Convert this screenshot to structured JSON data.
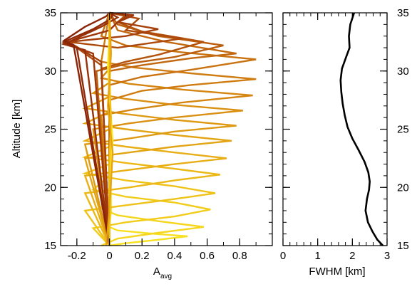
{
  "chart_data": [
    {
      "type": "line",
      "panel": "averaging-kernels",
      "xlabel": "A",
      "xlabel_sub": "avg",
      "ylabel": "Altitude [km]",
      "xlim": [
        -0.3,
        1.0
      ],
      "ylim": [
        15,
        35
      ],
      "xticks": [
        -0.2,
        0,
        0.2,
        0.4,
        0.6,
        0.8
      ],
      "xtick_labels": [
        "-0.2",
        "0",
        "0.2",
        "0.4",
        "0.6",
        "0.8"
      ],
      "yticks": [
        15,
        20,
        25,
        30,
        35
      ],
      "ytick_labels": [
        "15",
        "20",
        "25",
        "30",
        "35"
      ],
      "grid": false,
      "series": [
        {
          "color": "#f7e020",
          "x": [
            0,
            0.1,
            0.3,
            0.48,
            0.28,
            0.05,
            0,
            0.01,
            0
          ],
          "y": [
            15,
            15.2,
            15.5,
            15.8,
            16,
            16.3,
            16.6,
            18,
            35
          ]
        },
        {
          "color": "#f5d61c",
          "x": [
            -0.05,
            0.05,
            0.3,
            0.58,
            0.3,
            0.05,
            -0.05,
            0,
            0
          ],
          "y": [
            15,
            15.6,
            16.1,
            16.6,
            17.1,
            17.6,
            18.2,
            20,
            35
          ]
        },
        {
          "color": "#f2cc1a",
          "x": [
            0,
            -0.1,
            0.1,
            0.4,
            0.62,
            0.4,
            0.1,
            -0.1,
            0,
            0
          ],
          "y": [
            15,
            16.5,
            17,
            17.5,
            18.1,
            18.7,
            19.2,
            19.8,
            21,
            35
          ]
        },
        {
          "color": "#efc218",
          "x": [
            0,
            -0.15,
            0.12,
            0.4,
            0.65,
            0.4,
            0.1,
            -0.15,
            0,
            0
          ],
          "y": [
            15,
            18,
            18.5,
            19,
            19.5,
            20.1,
            20.6,
            21.2,
            22,
            35
          ]
        },
        {
          "color": "#ebb816",
          "x": [
            0,
            -0.15,
            0.12,
            0.4,
            0.68,
            0.4,
            0.1,
            -0.15,
            0,
            0
          ],
          "y": [
            15,
            19.5,
            20,
            20.6,
            21.1,
            21.6,
            22.1,
            22.6,
            23.5,
            35
          ]
        },
        {
          "color": "#e7ae15",
          "x": [
            0,
            -0.15,
            0.12,
            0.4,
            0.72,
            0.4,
            0.1,
            -0.15,
            0,
            0
          ],
          "y": [
            15,
            21,
            21.5,
            22,
            22.5,
            23,
            23.5,
            24,
            25,
            35
          ]
        },
        {
          "color": "#e3a414",
          "x": [
            0,
            -0.15,
            0.12,
            0.4,
            0.75,
            0.4,
            0.1,
            -0.15,
            0,
            0
          ],
          "y": [
            15,
            22.5,
            23,
            23.5,
            24,
            24.5,
            25,
            25.5,
            26.5,
            35
          ]
        },
        {
          "color": "#df9a13",
          "x": [
            0,
            -0.15,
            0.12,
            0.4,
            0.78,
            0.4,
            0.1,
            -0.15,
            0,
            0
          ],
          "y": [
            15,
            23.7,
            24.2,
            24.8,
            25.3,
            25.8,
            26.3,
            26.8,
            27.8,
            35
          ]
        },
        {
          "color": "#da9012",
          "x": [
            0,
            -0.1,
            0.12,
            0.4,
            0.82,
            0.4,
            0.1,
            -0.1,
            0,
            0
          ],
          "y": [
            15,
            25,
            25.5,
            26,
            26.6,
            27.1,
            27.6,
            28.1,
            29,
            35
          ]
        },
        {
          "color": "#d58611",
          "x": [
            0,
            -0.05,
            0.15,
            0.45,
            0.88,
            0.45,
            0.12,
            -0.05,
            0,
            0
          ],
          "y": [
            15,
            26.2,
            26.7,
            27.3,
            27.9,
            28.4,
            28.9,
            29.4,
            30.2,
            35
          ]
        },
        {
          "color": "#cf7c10",
          "x": [
            0,
            0,
            0.2,
            0.5,
            0.9,
            0.5,
            0.15,
            -0.05,
            0
          ],
          "y": [
            15,
            27.5,
            28.3,
            28.8,
            29.3,
            29.8,
            30.3,
            30.8,
            35
          ]
        },
        {
          "color": "#c9720f",
          "x": [
            0,
            0,
            0.2,
            0.5,
            0.9,
            0.45,
            0.1,
            -0.05,
            0
          ],
          "y": [
            15,
            28.8,
            29.5,
            30.1,
            31,
            31.6,
            32.2,
            33,
            35
          ]
        },
        {
          "color": "#c2680e",
          "x": [
            0,
            0,
            0.2,
            0.5,
            0.78,
            0.35,
            0.05,
            0
          ],
          "y": [
            15,
            30,
            30.5,
            31.1,
            31.5,
            32.5,
            33.5,
            35
          ]
        },
        {
          "color": "#bb5e0d",
          "x": [
            0,
            -0.08,
            0.1,
            0.4,
            0.7,
            0.3,
            0.05,
            0
          ],
          "y": [
            15,
            30,
            30.6,
            31.2,
            32.2,
            33,
            34,
            35
          ]
        },
        {
          "color": "#b4540c",
          "x": [
            0,
            -0.05,
            0.1,
            0.3,
            0.58,
            0.2,
            0.05,
            0.1,
            0
          ],
          "y": [
            15,
            30.2,
            30.8,
            31.4,
            32.5,
            33.4,
            34.2,
            34.8,
            35
          ]
        },
        {
          "color": "#ad4a0b",
          "x": [
            0,
            -0.05,
            -0.25,
            0.05,
            0.45,
            0.1,
            0.18,
            0
          ],
          "y": [
            15,
            30.5,
            32.5,
            32,
            32.8,
            33.5,
            34.5,
            35
          ]
        },
        {
          "color": "#a6400a",
          "x": [
            0,
            -0.05,
            -0.25,
            0.1,
            0.3,
            0.05,
            0.12,
            0
          ],
          "y": [
            15,
            30.8,
            32.5,
            33,
            33.6,
            34.2,
            34.8,
            35
          ]
        },
        {
          "color": "#9f360a",
          "x": [
            0,
            -0.1,
            -0.28,
            0,
            0.05,
            0.15,
            0
          ],
          "y": [
            15,
            31.5,
            32.4,
            33.5,
            34.2,
            34.8,
            35
          ]
        },
        {
          "color": "#983009",
          "x": [
            0,
            -0.15,
            -0.28,
            -0.05,
            0.05,
            0
          ],
          "y": [
            15,
            31.8,
            32.3,
            33.8,
            34.6,
            35
          ]
        },
        {
          "color": "#912a08",
          "x": [
            0,
            -0.2,
            -0.28,
            -0.1,
            0,
            0.02,
            0
          ],
          "y": [
            15,
            32,
            32.5,
            33.6,
            34.4,
            34.8,
            35
          ]
        },
        {
          "color": "#8a2408",
          "x": [
            0,
            -0.22,
            -0.28,
            -0.15,
            -0.02,
            0
          ],
          "y": [
            15,
            32.2,
            32.6,
            33.8,
            34.7,
            35
          ]
        },
        {
          "color": "#fbeb2a",
          "x": [
            0,
            0,
            0.02,
            0,
            -0.01,
            0,
            0
          ],
          "y": [
            15,
            20,
            24,
            28,
            30.5,
            33,
            35
          ]
        },
        {
          "color": "#f0c015",
          "x": [
            0,
            0,
            0.01,
            0,
            0,
            0
          ],
          "y": [
            15,
            22,
            26,
            29,
            33,
            35
          ]
        },
        {
          "color": "#e6a412",
          "x": [
            -0.02,
            0,
            0.02,
            -0.01,
            0.01,
            0
          ],
          "y": [
            15,
            18,
            23,
            27,
            31.5,
            35
          ]
        }
      ]
    },
    {
      "type": "line",
      "panel": "fwhm",
      "xlabel": "FWHM [km]",
      "xlim": [
        0,
        3
      ],
      "ylim": [
        15,
        35
      ],
      "xticks": [
        0,
        1,
        2,
        3
      ],
      "xtick_labels": [
        "0",
        "1",
        "2",
        "3"
      ],
      "yticks": [
        15,
        20,
        25,
        30,
        35
      ],
      "ytick_labels": [
        "15",
        "20",
        "25",
        "30",
        "35"
      ],
      "grid": false,
      "series": [
        {
          "color": "#000000",
          "x": [
            2.88,
            2.72,
            2.58,
            2.45,
            2.38,
            2.42,
            2.48,
            2.5,
            2.46,
            2.35,
            2.18,
            2.0,
            1.86,
            1.78,
            1.72,
            1.68,
            1.66,
            1.7,
            1.82,
            1.92,
            1.9,
            1.94,
            2.05
          ],
          "y": [
            15,
            15.5,
            16.2,
            17,
            18,
            19,
            19.8,
            20.5,
            21.3,
            22.2,
            23.2,
            24.2,
            25.2,
            26.2,
            27.2,
            28.2,
            29.2,
            30.2,
            31.2,
            32,
            33,
            34,
            35
          ]
        }
      ]
    }
  ]
}
